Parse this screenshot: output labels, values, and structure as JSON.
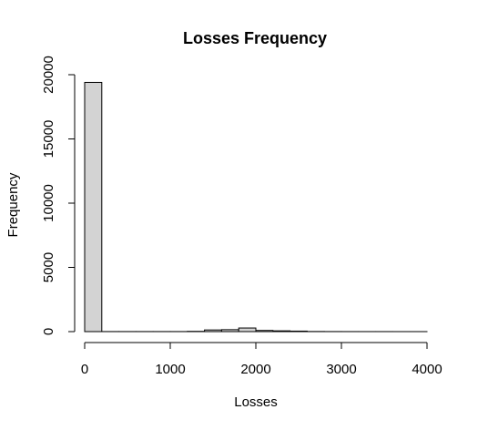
{
  "chart_data": {
    "type": "bar",
    "subtype": "histogram",
    "title": "Losses Frequency",
    "xlabel": "Losses",
    "ylabel": "Frequency",
    "xlim": [
      0,
      4000
    ],
    "ylim": [
      0,
      20000
    ],
    "x_ticks": [
      0,
      1000,
      2000,
      3000,
      4000
    ],
    "y_ticks": [
      0,
      5000,
      10000,
      15000,
      20000
    ],
    "grid": false,
    "bar_color": "#d3d3d3",
    "bins": [
      {
        "from": 0,
        "to": 200,
        "count": 19400
      },
      {
        "from": 200,
        "to": 400,
        "count": 5
      },
      {
        "from": 400,
        "to": 600,
        "count": 5
      },
      {
        "from": 600,
        "to": 800,
        "count": 5
      },
      {
        "from": 800,
        "to": 1000,
        "count": 5
      },
      {
        "from": 1000,
        "to": 1200,
        "count": 5
      },
      {
        "from": 1200,
        "to": 1400,
        "count": 20
      },
      {
        "from": 1400,
        "to": 1600,
        "count": 130
      },
      {
        "from": 1600,
        "to": 1800,
        "count": 150
      },
      {
        "from": 1800,
        "to": 2000,
        "count": 280
      },
      {
        "from": 2000,
        "to": 2200,
        "count": 90
      },
      {
        "from": 2200,
        "to": 2400,
        "count": 60
      },
      {
        "from": 2400,
        "to": 2600,
        "count": 40
      },
      {
        "from": 2600,
        "to": 2800,
        "count": 10
      },
      {
        "from": 2800,
        "to": 3000,
        "count": 5
      },
      {
        "from": 3000,
        "to": 3200,
        "count": 3
      },
      {
        "from": 3200,
        "to": 3400,
        "count": 2
      },
      {
        "from": 3400,
        "to": 3600,
        "count": 2
      },
      {
        "from": 3600,
        "to": 3800,
        "count": 1
      },
      {
        "from": 3800,
        "to": 4000,
        "count": 1
      }
    ]
  }
}
